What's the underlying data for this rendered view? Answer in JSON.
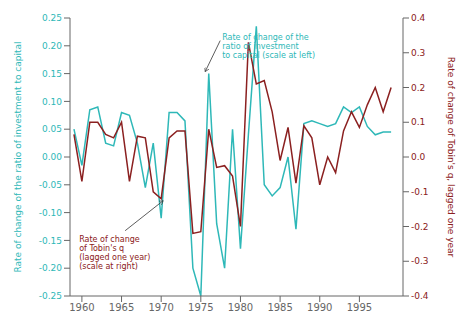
{
  "chart_data": {
    "type": "line",
    "x": [
      1959,
      1960,
      1961,
      1962,
      1963,
      1964,
      1965,
      1966,
      1967,
      1968,
      1969,
      1970,
      1971,
      1972,
      1973,
      1974,
      1975,
      1976,
      1977,
      1978,
      1979,
      1980,
      1981,
      1982,
      1983,
      1984,
      1985,
      1986,
      1987,
      1988,
      1989,
      1990,
      1991,
      1992,
      1993,
      1994,
      1995,
      1996,
      1997,
      1998,
      1999
    ],
    "series": [
      {
        "name": "Rate of change of the ratio of investment to capital",
        "color": "#2eb8b8",
        "values": [
          0.05,
          -0.015,
          0.085,
          0.09,
          0.025,
          0.02,
          0.08,
          0.075,
          0.025,
          -0.055,
          0.025,
          -0.11,
          0.08,
          0.08,
          0.065,
          -0.2,
          -0.25,
          0.15,
          -0.12,
          -0.2,
          0.05,
          -0.165,
          0.04,
          0.235,
          -0.05,
          -0.07,
          -0.055,
          0.0,
          -0.13,
          0.06,
          0.065,
          0.06,
          0.055,
          0.06,
          0.09,
          0.08,
          0.09,
          0.055,
          0.04,
          0.045,
          0.045
        ]
      },
      {
        "name": "Rate of change of Tobin's q, lagged one year",
        "color": "#8b2020",
        "axis": "y2",
        "values": [
          0.065,
          -0.07,
          0.1,
          0.1,
          0.065,
          0.055,
          0.1,
          -0.07,
          0.06,
          0.055,
          -0.1,
          -0.12,
          0.055,
          0.075,
          0.075,
          -0.22,
          -0.215,
          0.08,
          -0.03,
          -0.025,
          -0.055,
          -0.2,
          0.33,
          0.21,
          0.22,
          0.13,
          -0.01,
          0.085,
          -0.075,
          0.09,
          0.055,
          -0.08,
          0.0,
          -0.045,
          0.075,
          0.13,
          0.085,
          0.15,
          0.2,
          0.13,
          0.2
        ]
      }
    ],
    "ylabel": "Rate of change of the ratio of investment to capital",
    "y2label": "Rate of change of Tobin's q, lagged one year",
    "xlim": [
      1958.5,
      2000.5
    ],
    "xticks": [
      1960,
      1965,
      1970,
      1975,
      1980,
      1985,
      1990,
      1995
    ],
    "ylim": [
      -0.25,
      0.25
    ],
    "yticks": [
      -0.25,
      {
        "value": -0.2,
        "label": "-0.20"
      },
      -0.15,
      {
        "value": -0.1,
        "label": "-0.10"
      },
      -0.05,
      {
        "value": 0,
        "label": "0.00"
      },
      0.05,
      {
        "value": 0.1,
        "label": "0.10"
      },
      0.15,
      {
        "value": 0.2,
        "label": "0.20"
      },
      0.25
    ],
    "y2lim": [
      -0.4,
      0.4
    ],
    "y2ticks": [
      -0.4,
      -0.3,
      -0.2,
      -0.1,
      {
        "value": 0,
        "label": "0.0"
      },
      0.1,
      0.2,
      0.3,
      0.4
    ],
    "annotations": [
      {
        "text": "Rate of change of the\nratio of investment\nto capital (scale at left)",
        "color": "#2eb8b8",
        "x": 1975.3,
        "y": 0.15
      },
      {
        "text": "Rate of change\nof Tobin's q\n(lagged one year)\n(scale at right)",
        "color": "#8b2020",
        "x": 1970.5,
        "y": -0.12,
        "axis": "y2"
      }
    ],
    "grid": false
  }
}
